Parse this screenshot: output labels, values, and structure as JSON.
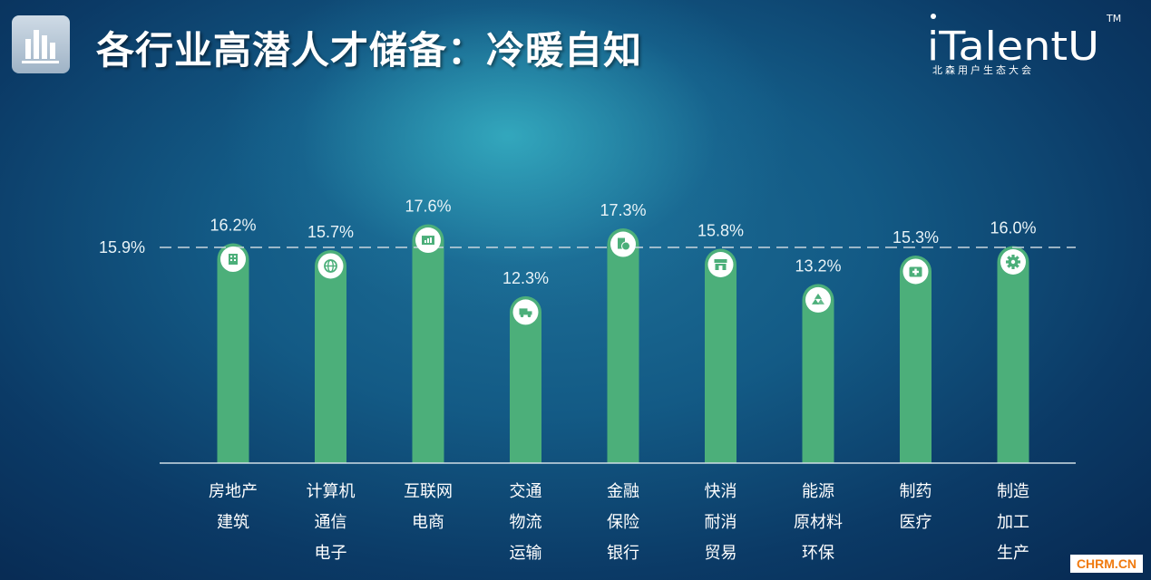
{
  "header": {
    "title": "各行业高潜人才储备：冷暖自知",
    "icon": "bar-chart-icon"
  },
  "logo": {
    "name": "iTalentU",
    "subtitle": "北森用户生态大会",
    "trademark": "TM"
  },
  "watermark": "CHRM.CN",
  "colors": {
    "bar": "#4caf7a",
    "icon_fill": "#ffffff",
    "icon_glyph": "#4caf7a",
    "reference_line": "#c9d6de",
    "axis": "#cfdde5"
  },
  "chart_data": {
    "type": "bar",
    "title": "各行业高潜人才储备：冷暖自知",
    "ylim": [
      0,
      18
    ],
    "reference_line": {
      "value": 15.9,
      "label": "15.9%"
    },
    "categories": [
      {
        "lines": [
          "房地产",
          "建筑"
        ],
        "value": 16.2,
        "label": "16.2%",
        "icon": "building-icon"
      },
      {
        "lines": [
          "计算机",
          "通信",
          "电子"
        ],
        "value": 15.7,
        "label": "15.7%",
        "icon": "globe-icon"
      },
      {
        "lines": [
          "互联网",
          "电商"
        ],
        "value": 17.6,
        "label": "17.6%",
        "icon": "monitor-chart-icon"
      },
      {
        "lines": [
          "交通",
          "物流",
          "运输"
        ],
        "value": 12.3,
        "label": "12.3%",
        "icon": "truck-icon"
      },
      {
        "lines": [
          "金融",
          "保险",
          "银行"
        ],
        "value": 17.3,
        "label": "17.3%",
        "icon": "money-icon"
      },
      {
        "lines": [
          "快消",
          "耐消",
          "贸易"
        ],
        "value": 15.8,
        "label": "15.8%",
        "icon": "store-icon"
      },
      {
        "lines": [
          "能源",
          "原材料",
          "环保"
        ],
        "value": 13.2,
        "label": "13.2%",
        "icon": "recycle-icon"
      },
      {
        "lines": [
          "制药",
          "医疗"
        ],
        "value": 15.3,
        "label": "15.3%",
        "icon": "medical-kit-icon"
      },
      {
        "lines": [
          "制造",
          "加工",
          "生产"
        ],
        "value": 16.0,
        "label": "16.0%",
        "icon": "gear-icon"
      }
    ]
  }
}
